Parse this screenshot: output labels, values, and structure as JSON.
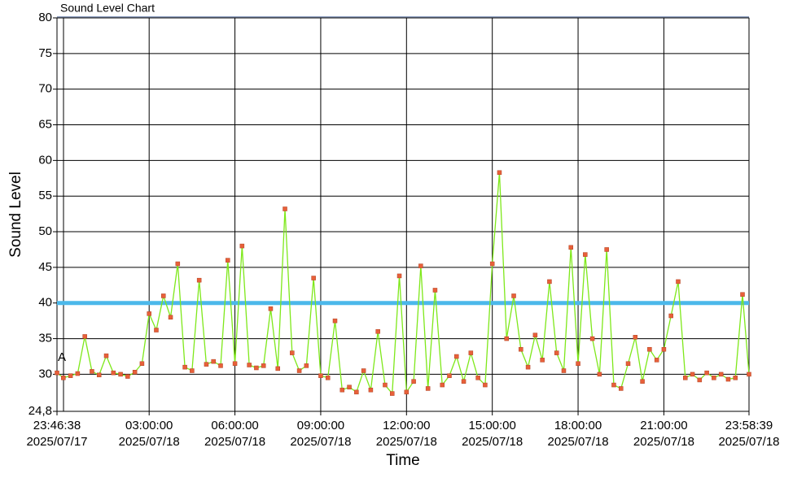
{
  "chart_data": {
    "type": "line",
    "title": "Sound Level Chart",
    "y_label": "Sound Level",
    "x_label": "Time",
    "annotation": "A",
    "series": [
      {
        "name": "Sound Level",
        "color": "#7ee81a",
        "marker_color": "#e8603a",
        "x": [
          "2025/07/17 23:46:38",
          "2025/07/18 00:00",
          "2025/07/18 00:15",
          "2025/07/18 00:30",
          "2025/07/18 00:45",
          "2025/07/18 01:00",
          "2025/07/18 01:15",
          "2025/07/18 01:30",
          "2025/07/18 01:45",
          "2025/07/18 02:00",
          "2025/07/18 02:15",
          "2025/07/18 02:30",
          "2025/07/18 02:45",
          "2025/07/18 03:00",
          "2025/07/18 03:15",
          "2025/07/18 03:30",
          "2025/07/18 03:45",
          "2025/07/18 04:00",
          "2025/07/18 04:15",
          "2025/07/18 04:30",
          "2025/07/18 04:45",
          "2025/07/18 05:00",
          "2025/07/18 05:15",
          "2025/07/18 05:30",
          "2025/07/18 05:45",
          "2025/07/18 06:00",
          "2025/07/18 06:15",
          "2025/07/18 06:30",
          "2025/07/18 06:45",
          "2025/07/18 07:00",
          "2025/07/18 07:15",
          "2025/07/18 07:30",
          "2025/07/18 07:45",
          "2025/07/18 08:00",
          "2025/07/18 08:15",
          "2025/07/18 08:30",
          "2025/07/18 08:45",
          "2025/07/18 09:00",
          "2025/07/18 09:15",
          "2025/07/18 09:30",
          "2025/07/18 09:45",
          "2025/07/18 10:00",
          "2025/07/18 10:15",
          "2025/07/18 10:30",
          "2025/07/18 10:45",
          "2025/07/18 11:00",
          "2025/07/18 11:15",
          "2025/07/18 11:30",
          "2025/07/18 11:45",
          "2025/07/18 12:00",
          "2025/07/18 12:15",
          "2025/07/18 12:30",
          "2025/07/18 12:45",
          "2025/07/18 13:00",
          "2025/07/18 13:15",
          "2025/07/18 13:30",
          "2025/07/18 13:45",
          "2025/07/18 14:00",
          "2025/07/18 14:15",
          "2025/07/18 14:30",
          "2025/07/18 14:45",
          "2025/07/18 15:00",
          "2025/07/18 15:15",
          "2025/07/18 15:30",
          "2025/07/18 15:45",
          "2025/07/18 16:00",
          "2025/07/18 16:15",
          "2025/07/18 16:30",
          "2025/07/18 16:45",
          "2025/07/18 17:00",
          "2025/07/18 17:15",
          "2025/07/18 17:30",
          "2025/07/18 17:45",
          "2025/07/18 18:00",
          "2025/07/18 18:15",
          "2025/07/18 18:30",
          "2025/07/18 18:45",
          "2025/07/18 19:00",
          "2025/07/18 19:15",
          "2025/07/18 19:30",
          "2025/07/18 19:45",
          "2025/07/18 20:00",
          "2025/07/18 20:15",
          "2025/07/18 20:30",
          "2025/07/18 20:45",
          "2025/07/18 21:00",
          "2025/07/18 21:15",
          "2025/07/18 21:30",
          "2025/07/18 21:45",
          "2025/07/18 22:00",
          "2025/07/18 22:15",
          "2025/07/18 22:30",
          "2025/07/18 22:45",
          "2025/07/18 23:00",
          "2025/07/18 23:15",
          "2025/07/18 23:30",
          "2025/07/18 23:45",
          "2025/07/18 23:58:39"
        ],
        "values": [
          30.2,
          29.5,
          29.8,
          30.1,
          35.3,
          30.4,
          29.9,
          32.6,
          30.2,
          30.0,
          29.7,
          30.3,
          31.5,
          38.5,
          36.2,
          41.0,
          38.0,
          45.5,
          31.0,
          30.5,
          43.2,
          31.4,
          31.8,
          31.2,
          46.0,
          31.5,
          48.0,
          31.3,
          30.9,
          31.2,
          39.2,
          30.8,
          53.2,
          33.0,
          30.5,
          31.2,
          43.5,
          29.8,
          29.5,
          37.5,
          27.8,
          28.2,
          27.5,
          30.5,
          27.8,
          36.0,
          28.5,
          27.3,
          43.8,
          27.5,
          29.0,
          45.2,
          28.0,
          41.8,
          28.5,
          29.8,
          32.5,
          29.0,
          33.0,
          29.5,
          28.5,
          45.5,
          58.3,
          35.0,
          41.0,
          33.5,
          31.0,
          35.5,
          32.0,
          43.0,
          33.0,
          30.5,
          47.8,
          31.5,
          46.8,
          35.0,
          30.0,
          47.5,
          28.5,
          28.0,
          31.5,
          35.2,
          29.0,
          33.5,
          32.0,
          33.5,
          38.2,
          43.0,
          29.5,
          30.0,
          29.2,
          30.2,
          29.5,
          30.0,
          29.3,
          29.5,
          41.2,
          30.0
        ]
      }
    ],
    "threshold": 40,
    "threshold_color": "#4cb8ea",
    "xlim": [
      "2025/07/17 23:46:38",
      "2025/07/18 23:58:39"
    ],
    "xticks": [
      {
        "value": "2025/07/17 23:46:38",
        "label": [
          "23:46:38",
          "2025/07/17"
        ]
      },
      {
        "value": "2025/07/18 03:00:00",
        "label": [
          "03:00:00",
          "2025/07/18"
        ]
      },
      {
        "value": "2025/07/18 06:00:00",
        "label": [
          "06:00:00",
          "2025/07/18"
        ]
      },
      {
        "value": "2025/07/18 09:00:00",
        "label": [
          "09:00:00",
          "2025/07/18"
        ]
      },
      {
        "value": "2025/07/18 12:00:00",
        "label": [
          "12:00:00",
          "2025/07/18"
        ]
      },
      {
        "value": "2025/07/18 15:00:00",
        "label": [
          "15:00:00",
          "2025/07/18"
        ]
      },
      {
        "value": "2025/07/18 18:00:00",
        "label": [
          "18:00:00",
          "2025/07/18"
        ]
      },
      {
        "value": "2025/07/18 21:00:00",
        "label": [
          "21:00:00",
          "2025/07/18"
        ]
      },
      {
        "value": "2025/07/18 23:58:39",
        "label": [
          "23:58:39",
          "2025/07/18"
        ]
      }
    ],
    "ylim": [
      24.8,
      80
    ],
    "yticks": [
      {
        "value": 24.8,
        "label": "24,8"
      },
      30,
      35,
      40,
      45,
      50,
      55,
      60,
      65,
      70,
      75,
      80
    ],
    "grid": true
  }
}
